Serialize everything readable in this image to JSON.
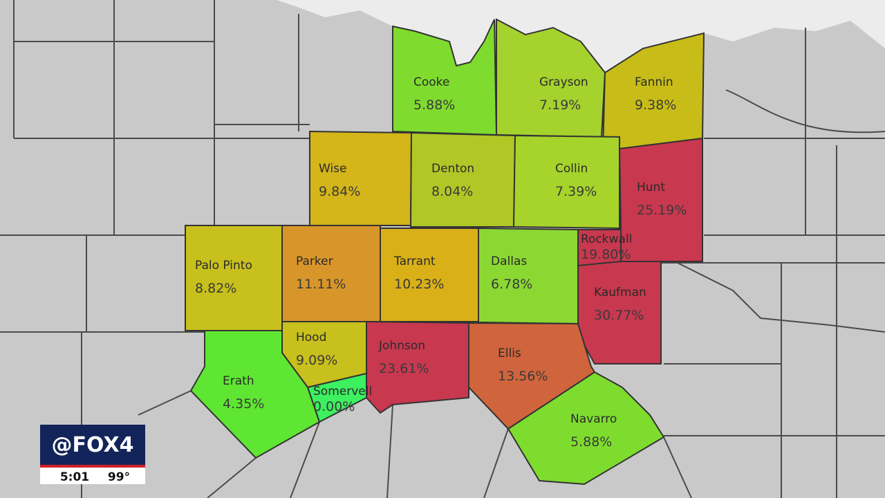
{
  "counties": [
    {
      "name": "Cooke",
      "rate": "5.88%",
      "color": "#7fdc2e"
    },
    {
      "name": "Grayson",
      "rate": "7.19%",
      "color": "#a6d22e"
    },
    {
      "name": "Fannin",
      "rate": "9.38%",
      "color": "#c8bd18"
    },
    {
      "name": "Wise",
      "rate": "9.84%",
      "color": "#d4b51a"
    },
    {
      "name": "Denton",
      "rate": "8.04%",
      "color": "#b0c826"
    },
    {
      "name": "Collin",
      "rate": "7.39%",
      "color": "#a6d42a"
    },
    {
      "name": "Hunt",
      "rate": "25.19%",
      "color": "#c8384f"
    },
    {
      "name": "Rockwall",
      "rate": "19.80%",
      "color": "#c8384f"
    },
    {
      "name": "Palo Pinto",
      "rate": "8.82%",
      "color": "#c8c01c"
    },
    {
      "name": "Parker",
      "rate": "11.11%",
      "color": "#d8962a"
    },
    {
      "name": "Tarrant",
      "rate": "10.23%",
      "color": "#d9b018"
    },
    {
      "name": "Dallas",
      "rate": "6.78%",
      "color": "#8cd833"
    },
    {
      "name": "Kaufman",
      "rate": "30.77%",
      "color": "#c8384f"
    },
    {
      "name": "Hood",
      "rate": "9.09%",
      "color": "#c8c01c"
    },
    {
      "name": "Johnson",
      "rate": "23.61%",
      "color": "#c8384f"
    },
    {
      "name": "Ellis",
      "rate": "13.56%",
      "color": "#d0643c"
    },
    {
      "name": "Erath",
      "rate": "4.35%",
      "color": "#5ee632"
    },
    {
      "name": "Somervell",
      "rate": "0.00%",
      "color": "#3cf060"
    },
    {
      "name": "Navarro",
      "rate": "5.88%",
      "color": "#7edc2e"
    }
  ],
  "logo": "@FOX4",
  "time": "5:01",
  "temperature": "99°"
}
